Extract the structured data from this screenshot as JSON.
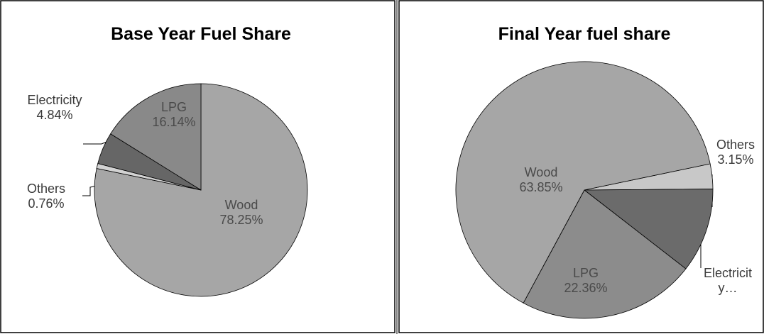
{
  "chart_data": [
    {
      "type": "pie",
      "title": "Base Year Fuel Share",
      "categories": [
        "Wood",
        "Others",
        "Electricity",
        "LPG"
      ],
      "values": [
        78.25,
        0.76,
        4.84,
        16.14
      ],
      "value_labels": [
        "78.25%",
        "0.76%",
        "4.84%",
        "16.14%"
      ],
      "colors": [
        "#a6a6a6",
        "#d2d2d2",
        "#666666",
        "#898989"
      ]
    },
    {
      "type": "pie",
      "title": "Final Year fuel share",
      "categories": [
        "Others",
        "Electricity…",
        "LPG",
        "Wood"
      ],
      "values": [
        3.15,
        10.64,
        22.36,
        63.85
      ],
      "value_labels": [
        "3.15%",
        null,
        "22.36%",
        "63.85%"
      ],
      "colors": [
        "#c8c8c8",
        "#6b6b6b",
        "#8c8c8c",
        "#a6a6a6"
      ]
    }
  ]
}
